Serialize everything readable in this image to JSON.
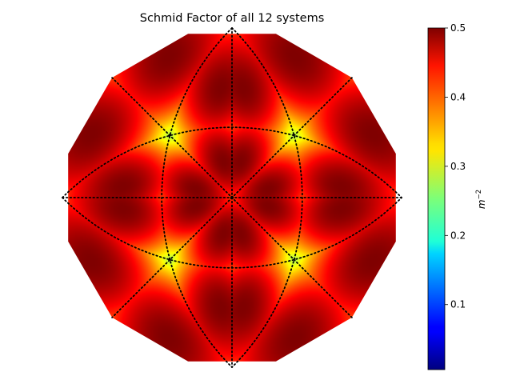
{
  "chart_data": {
    "type": "heatmap",
    "title": "Schmid Factor of all 12 systems",
    "colorbar": {
      "label": "m",
      "label_exponent": "−2",
      "range": [
        0.006,
        0.5
      ],
      "ticks": [
        "0.1",
        "0.2",
        "0.3",
        "0.4",
        "0.5"
      ],
      "tick_values": [
        0.1,
        0.2,
        0.3,
        0.4,
        0.5
      ],
      "colormap": "jet"
    },
    "projection": "stereographic pole figure (cubic, 12 slip systems)",
    "grid": "dotted great circles",
    "peaks": {
      "max_value": 0.5,
      "min_value": 0.006,
      "high_regions": [
        "upper lobe",
        "lower lobe",
        "left lobe",
        "right lobe",
        "four inner lobes near center"
      ],
      "low_regions": [
        "upper-left rim",
        "upper-right rim",
        "lower-left rim",
        "lower-right rim"
      ]
    }
  }
}
